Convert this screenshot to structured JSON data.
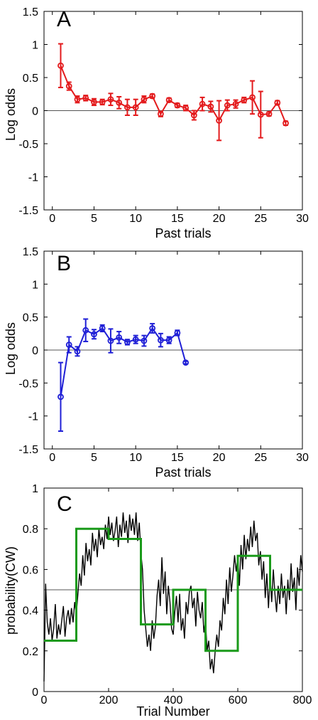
{
  "chart_data": [
    {
      "type": "line",
      "panel_label": "A",
      "xlabel": "Past trials",
      "ylabel": "Log odds",
      "xlim": [
        -1,
        30
      ],
      "ylim": [
        -1.5,
        1.5
      ],
      "xticks": [
        0,
        5,
        10,
        15,
        20,
        25,
        30
      ],
      "yticks": [
        -1.5,
        -1,
        -0.5,
        0,
        0.5,
        1,
        1.5
      ],
      "reference_line": 0,
      "color": "#e31a1c",
      "marker": "circle",
      "x": [
        1,
        2,
        3,
        4,
        5,
        6,
        7,
        8,
        9,
        10,
        11,
        12,
        13,
        14,
        15,
        16,
        17,
        18,
        19,
        20,
        21,
        22,
        23,
        24,
        25,
        26,
        27,
        28
      ],
      "y": [
        0.68,
        0.37,
        0.17,
        0.19,
        0.13,
        0.13,
        0.17,
        0.12,
        0.05,
        0.05,
        0.17,
        0.22,
        -0.05,
        0.16,
        0.08,
        0.04,
        -0.07,
        0.1,
        0.06,
        -0.15,
        0.08,
        0.1,
        0.16,
        0.2,
        -0.06,
        -0.05,
        0.12,
        -0.19
      ],
      "err": [
        0.33,
        0.06,
        0.05,
        0.04,
        0.05,
        0.04,
        0.09,
        0.09,
        0.12,
        0.12,
        0.05,
        0.03,
        0.04,
        0.03,
        0.03,
        0.04,
        0.07,
        0.1,
        0.08,
        0.3,
        0.08,
        0.06,
        0.04,
        0.25,
        0.35,
        0.03,
        0.03,
        0.03
      ]
    },
    {
      "type": "line",
      "panel_label": "B",
      "xlabel": "Past trials",
      "ylabel": "Log odds",
      "xlim": [
        -1,
        30
      ],
      "ylim": [
        -1.5,
        1.5
      ],
      "xticks": [
        0,
        5,
        10,
        15,
        20,
        25,
        30
      ],
      "yticks": [
        -1.5,
        -1,
        -0.5,
        0,
        0.5,
        1,
        1.5
      ],
      "reference_line": 0,
      "color": "#1f1fd6",
      "marker": "circle",
      "x": [
        1,
        2,
        3,
        4,
        5,
        6,
        7,
        8,
        9,
        10,
        11,
        12,
        13,
        14,
        15,
        16
      ],
      "y": [
        -0.71,
        0.08,
        -0.02,
        0.3,
        0.24,
        0.33,
        0.14,
        0.19,
        0.12,
        0.16,
        0.14,
        0.33,
        0.15,
        0.15,
        0.26,
        -0.19
      ],
      "err": [
        0.52,
        0.12,
        0.07,
        0.17,
        0.07,
        0.05,
        0.18,
        0.09,
        0.04,
        0.06,
        0.08,
        0.07,
        0.1,
        0.05,
        0.04,
        0.02
      ]
    },
    {
      "type": "line",
      "panel_label": "C",
      "xlabel": "Trial Number",
      "ylabel": "probability(CW)",
      "xlim": [
        0,
        800
      ],
      "ylim": [
        0,
        1
      ],
      "xticks": [
        0,
        200,
        400,
        600,
        800
      ],
      "yticks": [
        0,
        0.2,
        0.4,
        0.6,
        0.8,
        1
      ],
      "reference_line": 0.5,
      "series": [
        {
          "kind": "step",
          "color": "#1a9a1a",
          "segments": [
            {
              "from": 0,
              "to": 100,
              "value": 0.25
            },
            {
              "from": 100,
              "to": 200,
              "value": 0.8
            },
            {
              "from": 200,
              "to": 300,
              "value": 0.75
            },
            {
              "from": 300,
              "to": 400,
              "value": 0.33
            },
            {
              "from": 400,
              "to": 500,
              "value": 0.5
            },
            {
              "from": 500,
              "to": 600,
              "value": 0.2
            },
            {
              "from": 600,
              "to": 700,
              "value": 0.667
            },
            {
              "from": 700,
              "to": 800,
              "value": 0.5
            }
          ]
        },
        {
          "kind": "line",
          "color": "#000000",
          "x": [
            0,
            5,
            10,
            15,
            20,
            25,
            30,
            35,
            40,
            45,
            50,
            55,
            60,
            65,
            70,
            75,
            80,
            85,
            90,
            95,
            100,
            105,
            110,
            115,
            120,
            125,
            130,
            135,
            140,
            145,
            150,
            155,
            160,
            165,
            170,
            175,
            180,
            185,
            190,
            195,
            200,
            205,
            210,
            215,
            220,
            225,
            230,
            235,
            240,
            245,
            250,
            255,
            260,
            265,
            270,
            275,
            280,
            285,
            290,
            295,
            300,
            305,
            310,
            315,
            320,
            325,
            330,
            335,
            340,
            345,
            350,
            355,
            360,
            365,
            370,
            375,
            380,
            385,
            390,
            395,
            400,
            405,
            410,
            415,
            420,
            425,
            430,
            435,
            440,
            445,
            450,
            455,
            460,
            465,
            470,
            475,
            480,
            485,
            490,
            495,
            500,
            505,
            510,
            515,
            520,
            525,
            530,
            535,
            540,
            545,
            550,
            555,
            560,
            565,
            570,
            575,
            580,
            585,
            590,
            595,
            600,
            605,
            610,
            615,
            620,
            625,
            630,
            635,
            640,
            645,
            650,
            655,
            660,
            665,
            670,
            675,
            680,
            685,
            690,
            695,
            700,
            705,
            710,
            715,
            720,
            725,
            730,
            735,
            740,
            745,
            750,
            755,
            760,
            765,
            770,
            775,
            780,
            785,
            790,
            795,
            800
          ],
          "y": [
            0.05,
            0.53,
            0.34,
            0.28,
            0.36,
            0.25,
            0.31,
            0.43,
            0.26,
            0.33,
            0.28,
            0.35,
            0.42,
            0.27,
            0.36,
            0.4,
            0.33,
            0.41,
            0.34,
            0.44,
            0.38,
            0.48,
            0.58,
            0.52,
            0.67,
            0.57,
            0.73,
            0.64,
            0.7,
            0.62,
            0.78,
            0.69,
            0.75,
            0.66,
            0.8,
            0.72,
            0.76,
            0.7,
            0.82,
            0.75,
            0.86,
            0.77,
            0.83,
            0.74,
            0.79,
            0.86,
            0.71,
            0.82,
            0.76,
            0.88,
            0.78,
            0.84,
            0.73,
            0.87,
            0.79,
            0.85,
            0.77,
            0.88,
            0.74,
            0.83,
            0.68,
            0.6,
            0.4,
            0.31,
            0.22,
            0.28,
            0.2,
            0.35,
            0.26,
            0.32,
            0.47,
            0.55,
            0.42,
            0.66,
            0.48,
            0.59,
            0.38,
            0.52,
            0.44,
            0.31,
            0.28,
            0.39,
            0.47,
            0.34,
            0.48,
            0.3,
            0.36,
            0.26,
            0.44,
            0.38,
            0.49,
            0.52,
            0.41,
            0.46,
            0.32,
            0.49,
            0.4,
            0.36,
            0.44,
            0.29,
            0.35,
            0.2,
            0.25,
            0.11,
            0.16,
            0.09,
            0.2,
            0.28,
            0.22,
            0.35,
            0.3,
            0.46,
            0.38,
            0.55,
            0.43,
            0.61,
            0.49,
            0.57,
            0.67,
            0.59,
            0.66,
            0.52,
            0.72,
            0.6,
            0.77,
            0.65,
            0.75,
            0.69,
            0.81,
            0.71,
            0.84,
            0.74,
            0.78,
            0.62,
            0.69,
            0.55,
            0.64,
            0.46,
            0.58,
            0.41,
            0.57,
            0.44,
            0.6,
            0.48,
            0.39,
            0.52,
            0.43,
            0.58,
            0.46,
            0.52,
            0.38,
            0.55,
            0.45,
            0.63,
            0.49,
            0.56,
            0.4,
            0.61,
            0.52,
            0.67,
            0.59
          ]
        }
      ]
    }
  ]
}
